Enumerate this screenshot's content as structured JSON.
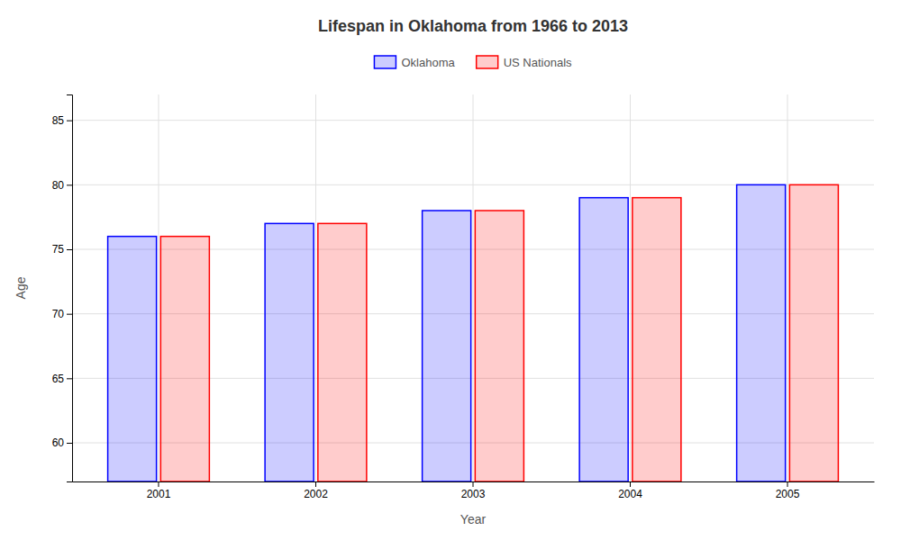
{
  "chart_data": {
    "type": "bar",
    "title": "Lifespan in Oklahoma from 1966 to 2013",
    "xlabel": "Year",
    "ylabel": "Age",
    "categories": [
      "2001",
      "2002",
      "2003",
      "2004",
      "2005"
    ],
    "series": [
      {
        "name": "Oklahoma",
        "color": "#0000ff",
        "values": [
          76,
          77,
          78,
          79,
          80
        ]
      },
      {
        "name": "US Nationals",
        "color": "#ff0000",
        "values": [
          76,
          77,
          78,
          79,
          80
        ]
      }
    ],
    "ylim": [
      57,
      87
    ],
    "yticks": [
      60,
      65,
      70,
      75,
      80,
      85
    ],
    "grid": true,
    "legend": "top"
  }
}
